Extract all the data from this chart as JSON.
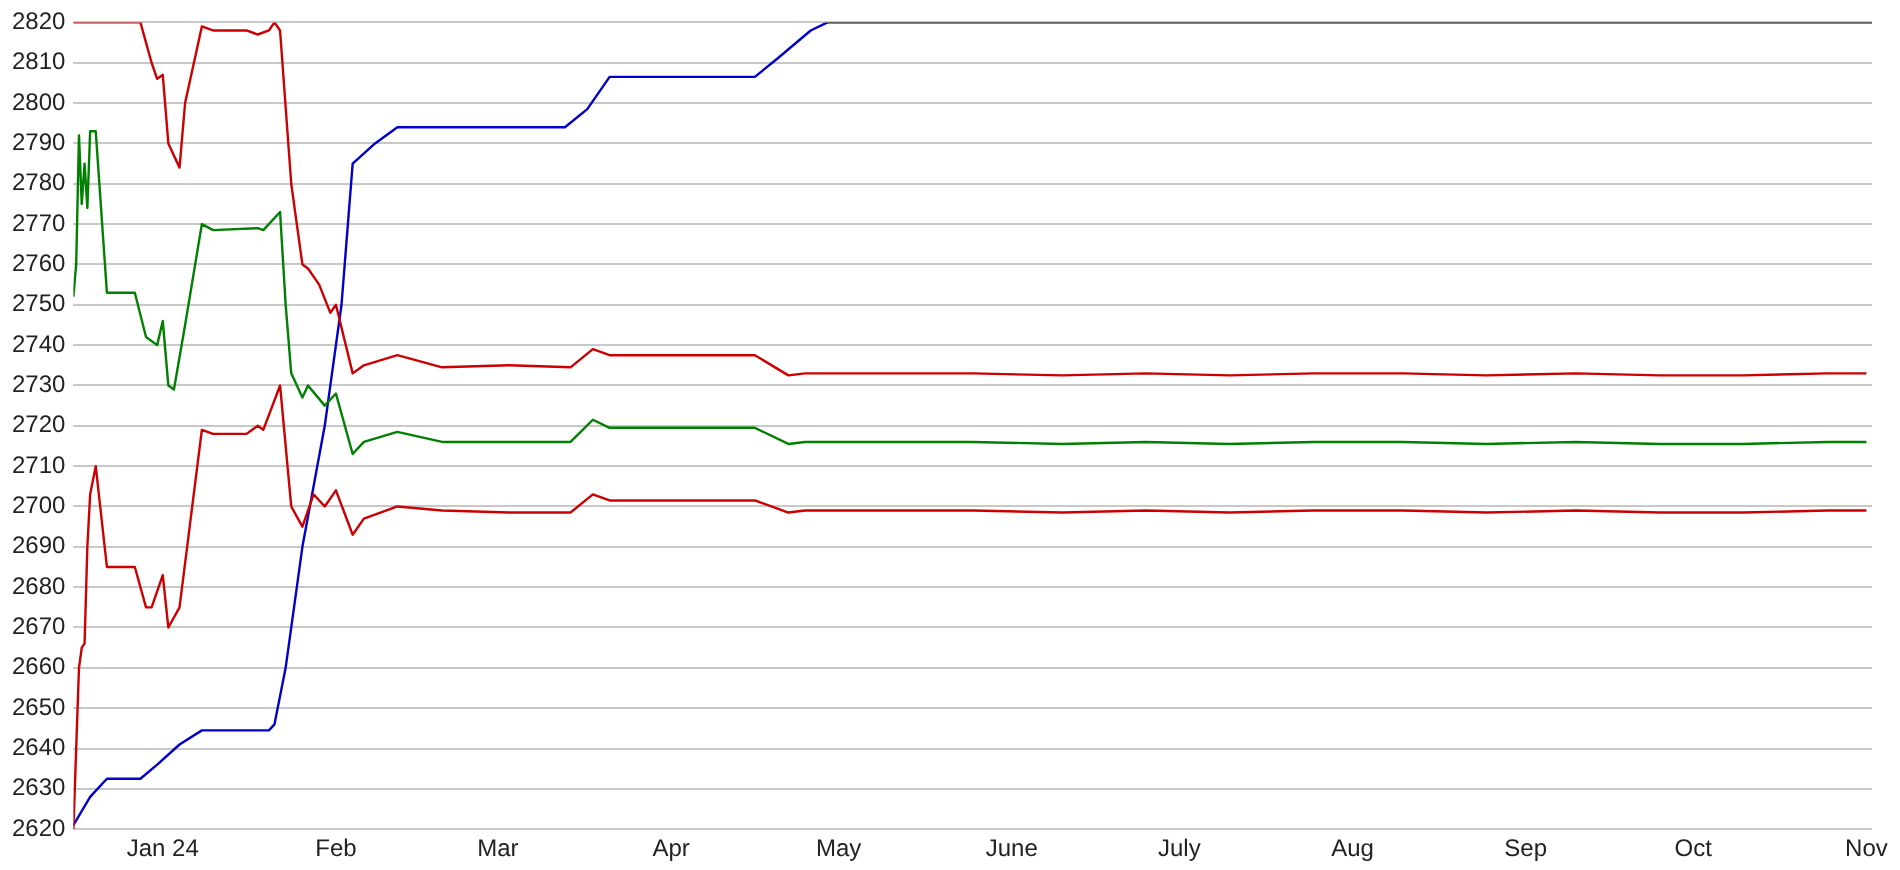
{
  "chart_data": {
    "type": "line",
    "xlim": [
      "2023-12-16",
      "2024-11-02"
    ],
    "ylim": [
      2620,
      2820
    ],
    "xticks": [
      {
        "value": "2024-01-01",
        "label": "Jan 24"
      },
      {
        "value": "2024-02-01",
        "label": "Feb"
      },
      {
        "value": "2024-03-01",
        "label": "Mar"
      },
      {
        "value": "2024-04-01",
        "label": "Apr"
      },
      {
        "value": "2024-05-01",
        "label": "May"
      },
      {
        "value": "2024-06-01",
        "label": "June"
      },
      {
        "value": "2024-07-01",
        "label": "July"
      },
      {
        "value": "2024-08-01",
        "label": "Aug"
      },
      {
        "value": "2024-09-01",
        "label": "Sep"
      },
      {
        "value": "2024-10-01",
        "label": "Oct"
      },
      {
        "value": "2024-11-01",
        "label": "Nov"
      }
    ],
    "yticks": [
      2620,
      2630,
      2640,
      2650,
      2660,
      2670,
      2680,
      2690,
      2700,
      2710,
      2720,
      2730,
      2740,
      2750,
      2760,
      2770,
      2780,
      2790,
      2800,
      2810,
      2820
    ],
    "grid": "y",
    "legend": false,
    "marker": "none",
    "line_style": "solid",
    "series": [
      {
        "color": "#000000",
        "x": [
          "2024-04-29",
          "2024-11-02"
        ],
        "values": [
          2820,
          2820
        ]
      },
      {
        "color": "#0000cc",
        "x": [
          "2023-12-16",
          "2023-12-19",
          "2023-12-22",
          "2023-12-28",
          "2023-12-31",
          "2024-01-04",
          "2024-01-08",
          "2024-01-20",
          "2024-01-21",
          "2024-01-23",
          "2024-01-26",
          "2024-01-30",
          "2024-02-02",
          "2024-02-04",
          "2024-02-08",
          "2024-02-12",
          "2024-03-13",
          "2024-03-17",
          "2024-03-21",
          "2024-04-16",
          "2024-04-20",
          "2024-04-26",
          "2024-04-29"
        ],
        "values": [
          2621,
          2628,
          2632.5,
          2632.5,
          2636,
          2641,
          2644.5,
          2644.5,
          2646,
          2660,
          2690,
          2720,
          2750,
          2785,
          2790,
          2794,
          2794,
          2798.5,
          2806.5,
          2806.5,
          2811,
          2818,
          2820
        ]
      },
      {
        "color": "#cc0000",
        "x": [
          "2023-12-16",
          "2023-12-28",
          "2023-12-30",
          "2023-12-31",
          "2024-01-01",
          "2024-01-02",
          "2024-01-04",
          "2024-01-05",
          "2024-01-08",
          "2024-01-10",
          "2024-01-16",
          "2024-01-18",
          "2024-01-20",
          "2024-01-21",
          "2024-01-22",
          "2024-01-24",
          "2024-01-26",
          "2024-01-27",
          "2024-01-29",
          "2024-01-31",
          "2024-02-01",
          "2024-02-04",
          "2024-02-06",
          "2024-02-12",
          "2024-02-20",
          "2024-03-03",
          "2024-03-14",
          "2024-03-18",
          "2024-03-21",
          "2024-04-16",
          "2024-04-22",
          "2024-04-25",
          "2024-05-10",
          "2024-05-25",
          "2024-06-10",
          "2024-06-25",
          "2024-07-10",
          "2024-07-25",
          "2024-08-10",
          "2024-08-25",
          "2024-09-10",
          "2024-09-25",
          "2024-10-10",
          "2024-10-25",
          "2024-11-01"
        ],
        "values": [
          2820,
          2820,
          2810,
          2806,
          2807,
          2790,
          2784,
          2800,
          2819,
          2818,
          2818,
          2817,
          2818,
          2820,
          2818,
          2780,
          2760,
          2759,
          2755,
          2748,
          2750,
          2733,
          2735,
          2737.5,
          2734.5,
          2735,
          2734.5,
          2739,
          2737.5,
          2737.5,
          2732.5,
          2733,
          2733,
          2733,
          2732.5,
          2733,
          2732.5,
          2733,
          2733,
          2732.5,
          2733,
          2732.5,
          2732.5,
          2733,
          2733
        ]
      },
      {
        "color": "#008000",
        "x": [
          "2023-12-16",
          "2023-12-16T12:00",
          "2023-12-17",
          "2023-12-17T12:00",
          "2023-12-18",
          "2023-12-18T12:00",
          "2023-12-19",
          "2023-12-20",
          "2023-12-22",
          "2023-12-27",
          "2023-12-29",
          "2023-12-31",
          "2024-01-01",
          "2024-01-02",
          "2024-01-03",
          "2024-01-05",
          "2024-01-08",
          "2024-01-10",
          "2024-01-18",
          "2024-01-19",
          "2024-01-22",
          "2024-01-23",
          "2024-01-24",
          "2024-01-26",
          "2024-01-27",
          "2024-01-30",
          "2024-02-01",
          "2024-02-04",
          "2024-02-06",
          "2024-02-12",
          "2024-02-20",
          "2024-03-03",
          "2024-03-14",
          "2024-03-18",
          "2024-03-21",
          "2024-04-16",
          "2024-04-22",
          "2024-04-25",
          "2024-05-10",
          "2024-05-25",
          "2024-06-10",
          "2024-06-25",
          "2024-07-10",
          "2024-07-25",
          "2024-08-10",
          "2024-08-25",
          "2024-09-10",
          "2024-09-25",
          "2024-10-10",
          "2024-10-25",
          "2024-11-01"
        ],
        "values": [
          2752,
          2760,
          2792,
          2775,
          2785,
          2774,
          2793,
          2793,
          2753,
          2753,
          2742,
          2740,
          2746,
          2730,
          2729,
          2745,
          2770,
          2768.5,
          2769,
          2768.5,
          2773,
          2750,
          2733,
          2727,
          2730,
          2725,
          2728,
          2713,
          2716,
          2718.5,
          2716,
          2716,
          2716,
          2721.5,
          2719.5,
          2719.5,
          2715.5,
          2716,
          2716,
          2716,
          2715.5,
          2716,
          2715.5,
          2716,
          2716,
          2715.5,
          2716,
          2715.5,
          2715.5,
          2716,
          2716
        ]
      },
      {
        "color": "#cc0000",
        "x": [
          "2023-12-16",
          "2023-12-17",
          "2023-12-17T12:00",
          "2023-12-18",
          "2023-12-18T12:00",
          "2023-12-19",
          "2023-12-20",
          "2023-12-22",
          "2023-12-27",
          "2023-12-29",
          "2023-12-30",
          "2024-01-01",
          "2024-01-02",
          "2024-01-04",
          "2024-01-08",
          "2024-01-10",
          "2024-01-16",
          "2024-01-18",
          "2024-01-19",
          "2024-01-22",
          "2024-01-24",
          "2024-01-26",
          "2024-01-28",
          "2024-01-30",
          "2024-02-01",
          "2024-02-04",
          "2024-02-06",
          "2024-02-12",
          "2024-02-20",
          "2024-03-03",
          "2024-03-14",
          "2024-03-18",
          "2024-03-21",
          "2024-04-16",
          "2024-04-22",
          "2024-04-25",
          "2024-05-10",
          "2024-05-25",
          "2024-06-10",
          "2024-06-25",
          "2024-07-10",
          "2024-07-25",
          "2024-08-10",
          "2024-08-25",
          "2024-09-10",
          "2024-09-25",
          "2024-10-10",
          "2024-10-25",
          "2024-11-01"
        ],
        "values": [
          2620,
          2660,
          2665,
          2666,
          2690,
          2703,
          2710,
          2685,
          2685,
          2675,
          2675,
          2683,
          2670,
          2675,
          2719,
          2718,
          2718,
          2720,
          2719,
          2730,
          2700,
          2695,
          2703,
          2700,
          2704,
          2693,
          2697,
          2700,
          2699,
          2698.5,
          2698.5,
          2703,
          2701.5,
          2701.5,
          2698.5,
          2699,
          2699,
          2699,
          2698.5,
          2699,
          2698.5,
          2699,
          2699,
          2698.5,
          2699,
          2698.5,
          2698.5,
          2699,
          2699
        ]
      }
    ]
  }
}
